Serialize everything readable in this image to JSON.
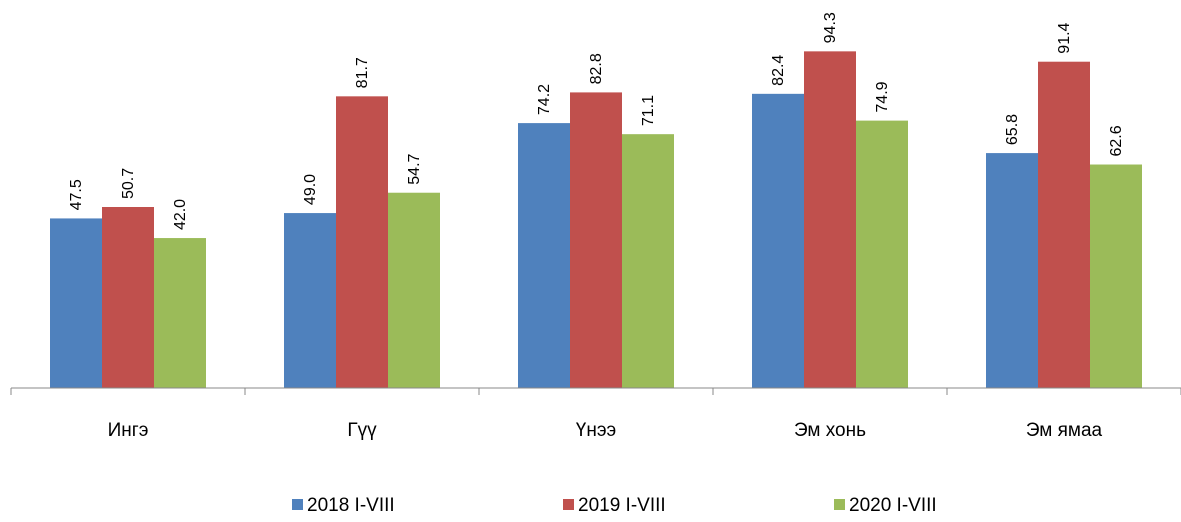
{
  "chart_data": {
    "type": "bar",
    "categories": [
      "Ингэ",
      "Гүү",
      "Үнээ",
      "Эм хонь",
      "Эм ямаа"
    ],
    "series": [
      {
        "name": "2018 I-VIII",
        "values": [
          47.5,
          49.0,
          74.2,
          82.4,
          65.8
        ]
      },
      {
        "name": "2019 I-VIII",
        "values": [
          50.7,
          81.7,
          82.8,
          94.3,
          91.4
        ]
      },
      {
        "name": "2020 I-VIII",
        "values": [
          42.0,
          54.7,
          71.1,
          74.9,
          62.6
        ]
      }
    ],
    "ylim": [
      0,
      100
    ],
    "grid": false,
    "legend": "bottom",
    "data_labels": "rotated-vertical",
    "colors": [
      "#4F81BD",
      "#C0504D",
      "#9BBB59"
    ]
  }
}
